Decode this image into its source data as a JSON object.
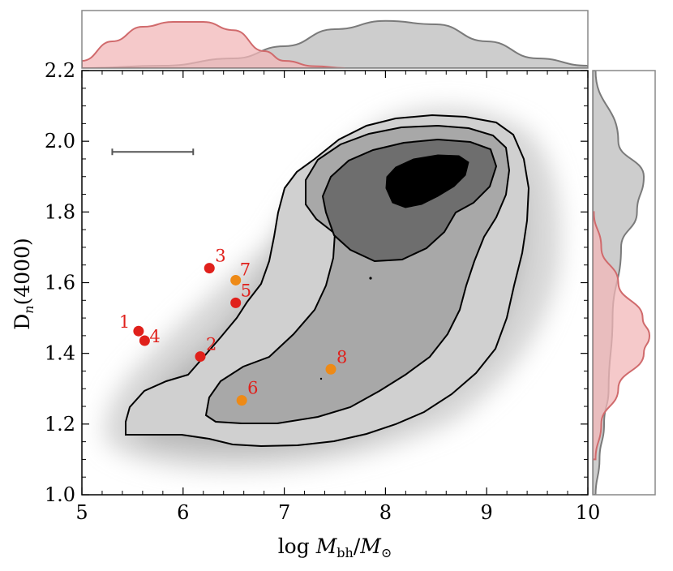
{
  "chart_data": {
    "type": "scatter",
    "xlabel": "log M_bh / M_⊙",
    "ylabel": "D_n(4000)",
    "xlim": [
      5,
      10
    ],
    "ylim": [
      1.0,
      2.2
    ],
    "x_ticks": [
      "5",
      "6",
      "7",
      "8",
      "9",
      "10"
    ],
    "y_ticks": [
      "1.0",
      "1.2",
      "1.4",
      "1.6",
      "1.8",
      "2.0",
      "2.2"
    ],
    "grid": false,
    "legend": "none",
    "background_density": {
      "type": "contour",
      "levels": 4,
      "fill_colors": [
        "#d0d0d0",
        "#a8a8a8",
        "#6e6e6e",
        "#000000"
      ],
      "peak": [
        8.4,
        1.88
      ]
    },
    "error_bar": {
      "x_range": [
        5.3,
        6.1
      ],
      "y": 1.97
    },
    "points": [
      {
        "label": "1",
        "x": 5.56,
        "y": 1.463,
        "color": "#e0201b"
      },
      {
        "label": "2",
        "x": 6.17,
        "y": 1.391,
        "color": "#e0201b"
      },
      {
        "label": "3",
        "x": 6.26,
        "y": 1.641,
        "color": "#e0201b"
      },
      {
        "label": "4",
        "x": 5.62,
        "y": 1.436,
        "color": "#e0201b"
      },
      {
        "label": "5",
        "x": 6.52,
        "y": 1.543,
        "color": "#e0201b"
      },
      {
        "label": "6",
        "x": 6.58,
        "y": 1.267,
        "color": "#ee8a16"
      },
      {
        "label": "7",
        "x": 6.52,
        "y": 1.607,
        "color": "#ee8a16"
      },
      {
        "label": "8",
        "x": 7.46,
        "y": 1.355,
        "color": "#ee8a16"
      }
    ],
    "marginals": {
      "top": {
        "series": [
          {
            "fill": "#f1b7b8",
            "stroke": "#d06a6c",
            "x": [
              5.0,
              5.3,
              5.6,
              5.9,
              6.2,
              6.5,
              6.8,
              7.0,
              7.3,
              7.6
            ],
            "density": [
              0.15,
              0.55,
              0.85,
              0.95,
              0.95,
              0.78,
              0.35,
              0.15,
              0.04,
              0.0
            ]
          },
          {
            "fill": "#bcbcbc",
            "stroke": "#7a7a7a",
            "x": [
              5.0,
              5.8,
              6.5,
              7.0,
              7.5,
              8.0,
              8.5,
              9.0,
              9.5,
              10.0
            ],
            "density": [
              0.0,
              0.05,
              0.2,
              0.45,
              0.8,
              0.97,
              0.9,
              0.55,
              0.2,
              0.05
            ]
          }
        ]
      },
      "right": {
        "series": [
          {
            "fill": "#f1b7b8",
            "stroke": "#d06a6c",
            "y": [
              1.1,
              1.2,
              1.3,
              1.4,
              1.45,
              1.5,
              1.6,
              1.7,
              1.8
            ],
            "density": [
              0.05,
              0.15,
              0.45,
              0.9,
              1.0,
              0.88,
              0.45,
              0.15,
              0.02
            ]
          },
          {
            "fill": "#bcbcbc",
            "stroke": "#7a7a7a",
            "y": [
              1.0,
              1.1,
              1.2,
              1.3,
              1.5,
              1.7,
              1.8,
              1.9,
              2.0,
              2.2
            ],
            "density": [
              0.05,
              0.12,
              0.2,
              0.28,
              0.35,
              0.5,
              0.78,
              0.9,
              0.45,
              0.05
            ]
          }
        ]
      }
    }
  }
}
